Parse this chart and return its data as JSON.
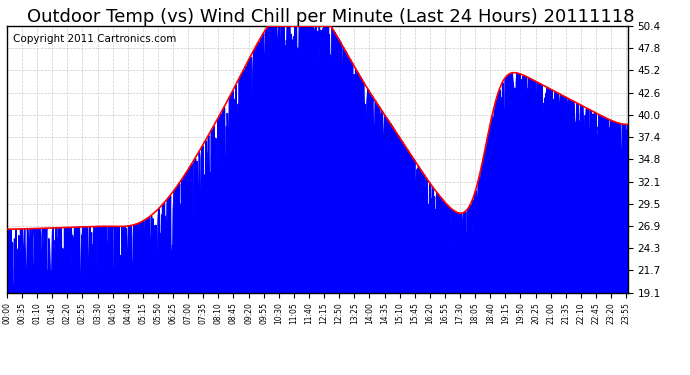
{
  "title": "Outdoor Temp (vs) Wind Chill per Minute (Last 24 Hours) 20111118",
  "copyright": "Copyright 2011 Cartronics.com",
  "y_ticks": [
    19.1,
    21.7,
    24.3,
    26.9,
    29.5,
    32.1,
    34.8,
    37.4,
    40.0,
    42.6,
    45.2,
    47.8,
    50.4
  ],
  "y_min": 19.1,
  "y_max": 50.4,
  "total_minutes": 1440,
  "x_tick_interval": 35,
  "background_color": "#ffffff",
  "plot_bg_color": "#ffffff",
  "grid_color": "#cccccc",
  "blue_color": "#0000ff",
  "red_color": "#ff0000",
  "title_fontsize": 13,
  "copyright_fontsize": 7.5
}
